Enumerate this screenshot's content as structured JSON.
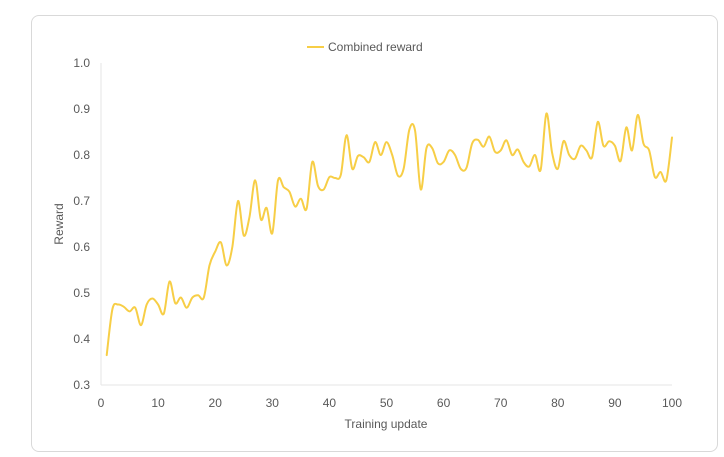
{
  "chart_data": {
    "type": "line",
    "xlabel": "Training update",
    "ylabel": "Reward",
    "xlim": [
      0,
      100
    ],
    "ylim": [
      0.3,
      1.0
    ],
    "xticks": [
      0,
      10,
      20,
      30,
      40,
      50,
      60,
      70,
      80,
      90,
      100
    ],
    "yticks": [
      0.3,
      0.4,
      0.5,
      0.6,
      0.7,
      0.8,
      0.9,
      1.0
    ],
    "legend_position": "top-center",
    "grid": false,
    "series": [
      {
        "name": "Combined reward",
        "color": "#f7ce46",
        "x": [
          1,
          2,
          3,
          4,
          5,
          6,
          7,
          8,
          9,
          10,
          11,
          12,
          13,
          14,
          15,
          16,
          17,
          18,
          19,
          20,
          21,
          22,
          23,
          24,
          25,
          26,
          27,
          28,
          29,
          30,
          31,
          32,
          33,
          34,
          35,
          36,
          37,
          38,
          39,
          40,
          41,
          42,
          43,
          44,
          45,
          46,
          47,
          48,
          49,
          50,
          51,
          52,
          53,
          54,
          55,
          56,
          57,
          58,
          59,
          60,
          61,
          62,
          63,
          64,
          65,
          66,
          67,
          68,
          69,
          70,
          71,
          72,
          73,
          74,
          75,
          76,
          77,
          78,
          79,
          80,
          81,
          82,
          83,
          84,
          85,
          86,
          87,
          88,
          89,
          90,
          91,
          92,
          93,
          94,
          95,
          96,
          97,
          98,
          99,
          100
        ],
        "values": [
          0.365,
          0.465,
          0.475,
          0.47,
          0.46,
          0.468,
          0.43,
          0.475,
          0.488,
          0.475,
          0.455,
          0.525,
          0.478,
          0.49,
          0.468,
          0.49,
          0.495,
          0.49,
          0.56,
          0.59,
          0.61,
          0.56,
          0.6,
          0.7,
          0.625,
          0.665,
          0.745,
          0.66,
          0.685,
          0.63,
          0.745,
          0.73,
          0.72,
          0.688,
          0.705,
          0.683,
          0.785,
          0.733,
          0.725,
          0.752,
          0.75,
          0.757,
          0.843,
          0.77,
          0.798,
          0.795,
          0.785,
          0.828,
          0.8,
          0.828,
          0.8,
          0.755,
          0.77,
          0.855,
          0.853,
          0.725,
          0.815,
          0.815,
          0.782,
          0.785,
          0.81,
          0.8,
          0.77,
          0.772,
          0.825,
          0.833,
          0.818,
          0.84,
          0.807,
          0.81,
          0.832,
          0.8,
          0.812,
          0.785,
          0.775,
          0.8,
          0.768,
          0.89,
          0.805,
          0.77,
          0.83,
          0.8,
          0.792,
          0.82,
          0.81,
          0.795,
          0.872,
          0.82,
          0.83,
          0.82,
          0.787,
          0.86,
          0.81,
          0.887,
          0.825,
          0.81,
          0.752,
          0.763,
          0.745,
          0.838
        ]
      }
    ]
  }
}
